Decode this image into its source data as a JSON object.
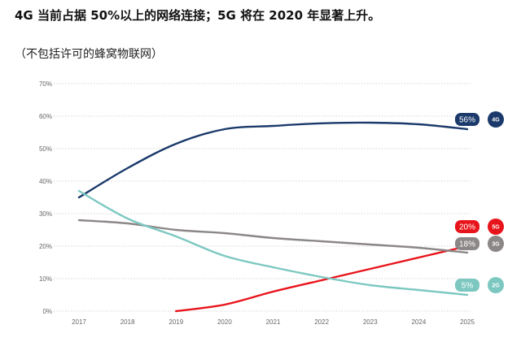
{
  "title": "4G 当前占据 50%以上的网络连接；5G 将在 2020 年显著上升。",
  "subtitle": "（不包括许可的蜂窝物联网）",
  "chart_data": {
    "type": "line",
    "x": [
      2017,
      2018,
      2019,
      2020,
      2021,
      2022,
      2023,
      2024,
      2025
    ],
    "x_tick_labels": [
      "2017",
      "2018",
      "2019",
      "2020",
      "2021",
      "2022",
      "2023",
      "2024",
      "2025"
    ],
    "ylim": [
      0,
      70
    ],
    "y_tick_labels": [
      "0%",
      "10%",
      "20%",
      "30%",
      "40%",
      "50%",
      "60%",
      "70%"
    ],
    "grid": "horizontal dotted",
    "series": [
      {
        "name": "4G",
        "value_label": "56%",
        "color": "#1b3a6b",
        "values": [
          35,
          44,
          51.5,
          56,
          57,
          57.8,
          58,
          57.5,
          56
        ]
      },
      {
        "name": "5G",
        "value_label": "20%",
        "color": "#e8141b",
        "values": [
          null,
          null,
          0,
          2,
          6,
          9.5,
          13,
          16.5,
          20
        ]
      },
      {
        "name": "3G",
        "value_label": "18%",
        "color": "#8c8787",
        "values": [
          28,
          27,
          25,
          24,
          22.5,
          21.5,
          20.5,
          19.5,
          18
        ]
      },
      {
        "name": "2G",
        "value_label": "5%",
        "color": "#7cc8c1",
        "values": [
          37,
          28.5,
          23,
          17,
          13.5,
          10.5,
          8,
          6.5,
          5
        ]
      }
    ]
  }
}
